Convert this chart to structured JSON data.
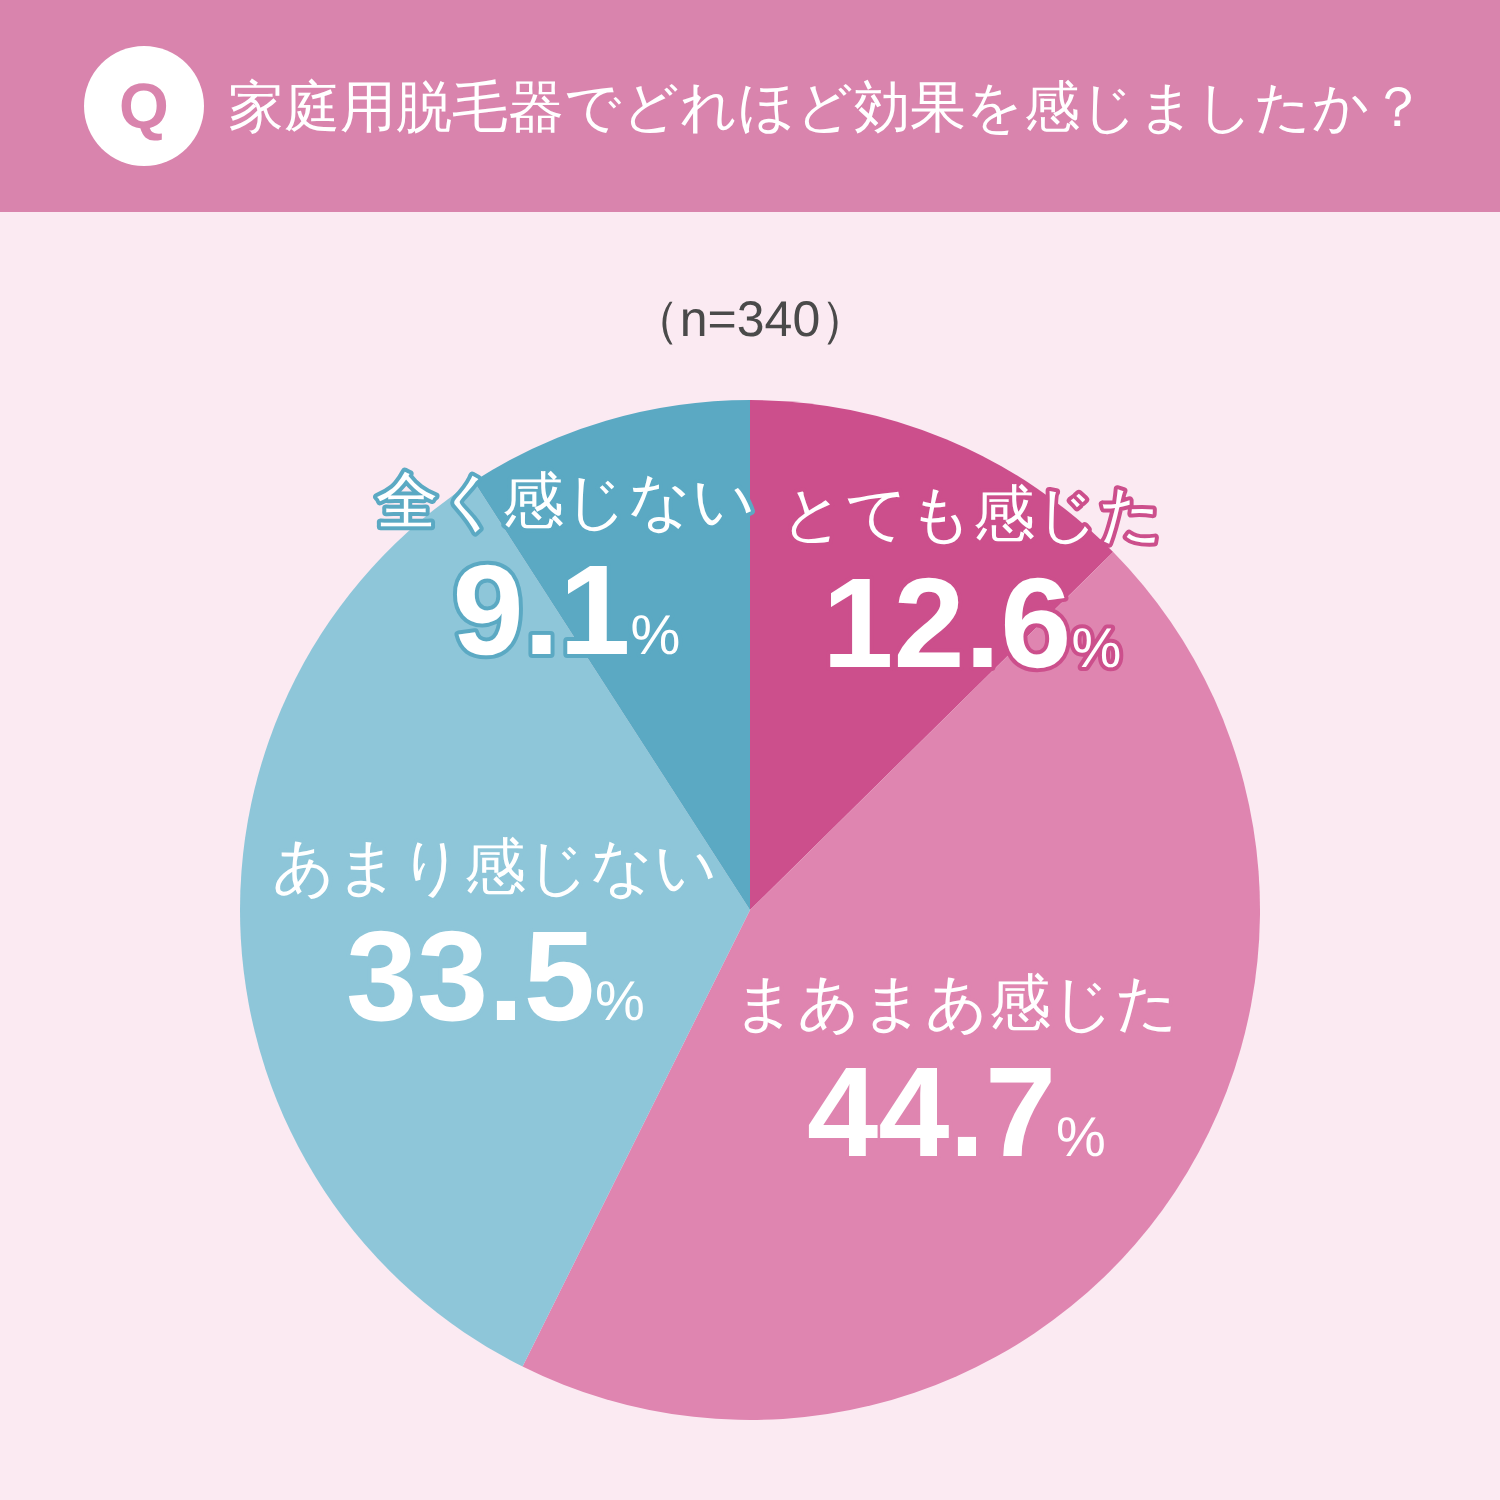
{
  "chart_data": {
    "type": "pie",
    "title": "家庭用脱毛器でどれほど効果を感じましたか？",
    "subtitle": "（n=340）",
    "annotations": [
      "Q"
    ],
    "categories": [
      "とても感じた",
      "まあまあ感じた",
      "あまり感じない",
      "全く感じない"
    ],
    "values": [
      12.6,
      44.7,
      33.5,
      9.1
    ],
    "value_labels": [
      "12.6%",
      "44.7%",
      "33.5%",
      "9.1%"
    ],
    "colors": [
      "#cc4f8c",
      "#df85b0",
      "#8ec6d9",
      "#5ba9c3"
    ]
  }
}
